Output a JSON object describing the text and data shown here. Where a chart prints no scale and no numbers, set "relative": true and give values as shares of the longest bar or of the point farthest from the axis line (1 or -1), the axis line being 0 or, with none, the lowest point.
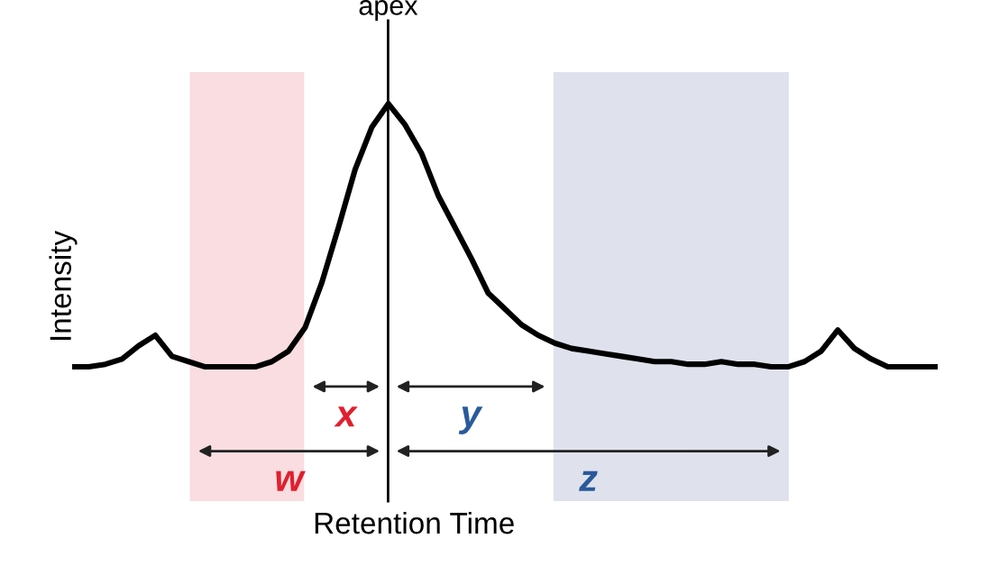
{
  "chart_data": {
    "type": "line",
    "relative": true,
    "xlabel": "Retention Time",
    "ylabel": "Intensity",
    "categories": [
      null,
      null,
      null,
      null,
      null,
      null,
      null,
      null,
      null,
      null,
      null,
      null,
      null,
      null,
      null,
      null,
      null,
      null,
      null,
      null,
      null,
      null,
      null,
      null,
      null,
      null,
      null,
      null,
      null,
      null,
      null,
      null,
      null,
      null,
      null,
      null,
      null,
      null,
      null,
      null,
      null,
      null,
      null,
      null,
      null,
      null,
      null,
      null,
      null,
      null,
      null,
      null,
      null
    ],
    "series": [
      {
        "color": "#000000",
        "values": [
          0,
          0,
          0.01,
          0.03,
          0.08,
          0.12,
          0.04,
          0.02,
          0,
          0,
          0,
          0,
          0.02,
          0.06,
          0.15,
          0.32,
          0.53,
          0.75,
          0.91,
          1,
          0.92,
          0.81,
          0.65,
          0.53,
          0.41,
          0.28,
          0.22,
          0.16,
          0.12,
          0.09,
          0.07,
          0.06,
          0.05,
          0.04,
          0.03,
          0.02,
          0.02,
          0.01,
          0.01,
          0.02,
          0.01,
          0.01,
          0,
          0,
          0.02,
          0.06,
          0.14,
          0.07,
          0.03,
          0,
          0,
          0,
          0
        ]
      }
    ],
    "annotations": [
      "apex",
      "x",
      "y",
      "w",
      "z"
    ],
    "marker": "none",
    "line_style": "solid"
  }
}
